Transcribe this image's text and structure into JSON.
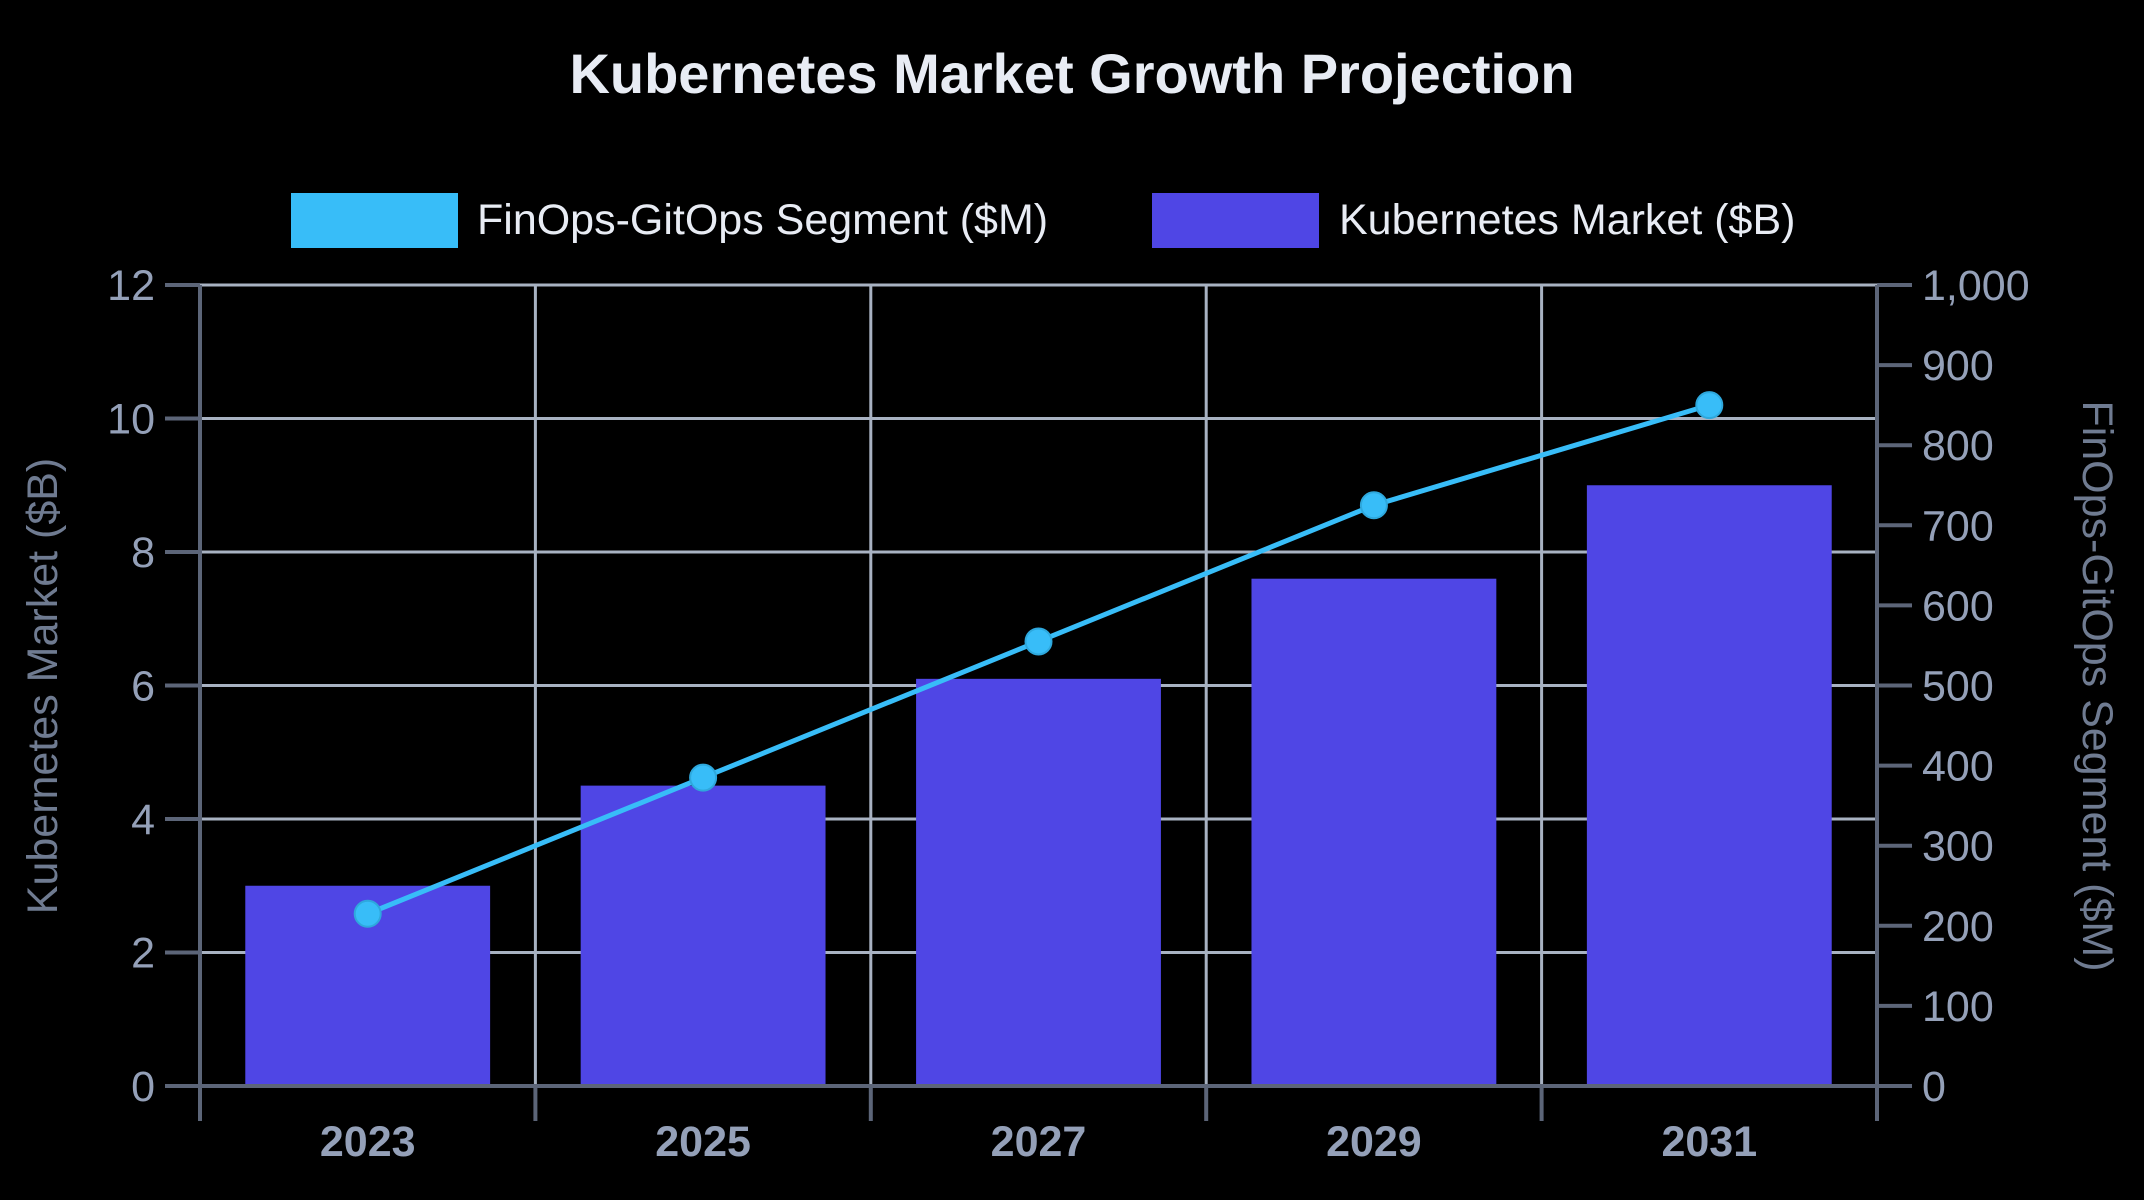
{
  "chart_data": {
    "type": "bar",
    "title": "Kubernetes Market Growth Projection",
    "categories": [
      "2023",
      "2025",
      "2027",
      "2029",
      "2031"
    ],
    "series": [
      {
        "name": "Kubernetes Market ($B)",
        "type": "bar",
        "axis": "left",
        "color": "#4f46e5",
        "values": [
          3.0,
          4.5,
          6.1,
          7.6,
          9.0
        ]
      },
      {
        "name": "FinOps-GitOps Segment ($M)",
        "type": "line",
        "axis": "right",
        "color": "#38bdf8",
        "values": [
          215,
          385,
          555,
          725,
          850
        ]
      }
    ],
    "legend_order": [
      "FinOps-GitOps Segment ($M)",
      "Kubernetes Market ($B)"
    ],
    "legend_position": "top",
    "y_left": {
      "label": "Kubernetes Market ($B)",
      "range": [
        0,
        12
      ],
      "ticks": [
        "0",
        "2",
        "4",
        "6",
        "8",
        "10",
        "12"
      ]
    },
    "y_right": {
      "label": "FinOps-GitOps Segment ($M)",
      "range": [
        0,
        1000
      ],
      "ticks": [
        "0",
        "100",
        "200",
        "300",
        "400",
        "500",
        "600",
        "700",
        "800",
        "900",
        "1,000"
      ]
    },
    "grid": true,
    "colors": {
      "background": "#000000",
      "grid": "#a8b2c2",
      "axis": "#5c6578",
      "tick_text": "#94a0b8",
      "axis_label": "#6f7b91",
      "title": "#e8ecf4"
    }
  }
}
